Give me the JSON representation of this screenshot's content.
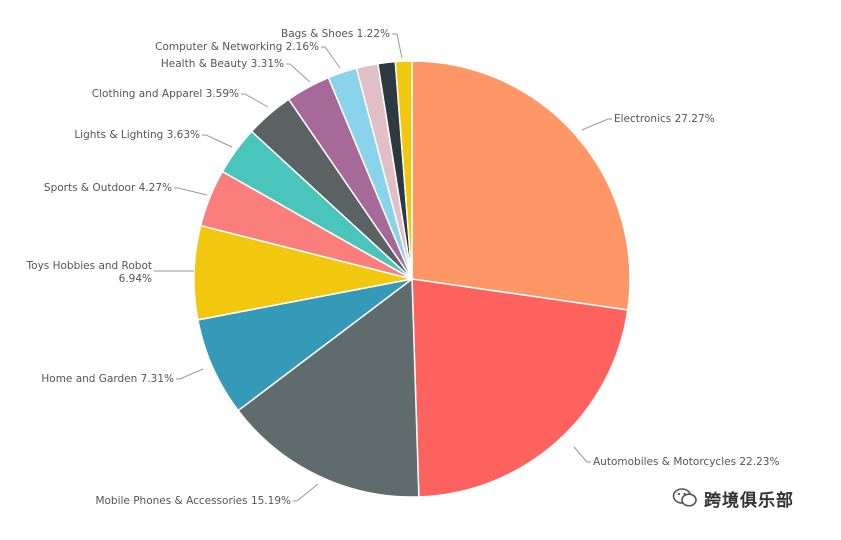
{
  "chart_data": {
    "type": "pie",
    "title": "",
    "slices": [
      {
        "name": "Electronics",
        "value": 27.27,
        "label": "Electronics 27.27%",
        "color": "#FE9666"
      },
      {
        "name": "Automobiles & Motorcycles",
        "value": 22.23,
        "label": "Automobiles & Motorcycles 22.23%",
        "color": "#FD625E"
      },
      {
        "name": "Mobile Phones & Accessories",
        "value": 15.19,
        "label": "Mobile Phones & Accessories 15.19%",
        "color": "#5F6B6D"
      },
      {
        "name": "Home and Garden",
        "value": 7.31,
        "label": "Home and Garden 7.31%",
        "color": "#3599B8"
      },
      {
        "name": "Toys Hobbies and Robot",
        "value": 6.94,
        "label_lines": [
          "Toys Hobbies and Robot",
          "6.94%"
        ],
        "color": "#F2C80F"
      },
      {
        "name": "Sports & Outdoor",
        "value": 4.27,
        "label": "Sports & Outdoor 4.27%",
        "color": "#FA7E7C"
      },
      {
        "name": "Lights & Lighting",
        "value": 3.63,
        "label": "Lights & Lighting 3.63%",
        "color": "#4AC5BB"
      },
      {
        "name": "Clothing and Apparel",
        "value": 3.59,
        "label": "Clothing and Apparel 3.59%",
        "color": "#5C6164"
      },
      {
        "name": "Health & Beauty",
        "value": 3.31,
        "label": "Health & Beauty 3.31%",
        "color": "#A66999"
      },
      {
        "name": "Computer & Networking",
        "value": 2.16,
        "label": "Computer & Networking 2.16%",
        "color": "#8AD4EB"
      },
      {
        "name": "(unlabeled)",
        "value": 1.6,
        "label": "",
        "color": "#E0C0C6"
      },
      {
        "name": "(unlabeled)",
        "value": 1.28,
        "label": "",
        "color": "#2F3A40"
      },
      {
        "name": "Bags & Shoes",
        "value": 1.22,
        "label": "Bags & Shoes 1.22%",
        "color": "#F2C80F"
      }
    ]
  },
  "watermark": {
    "text": "跨境俱乐部",
    "icon": "wechat-icon"
  }
}
